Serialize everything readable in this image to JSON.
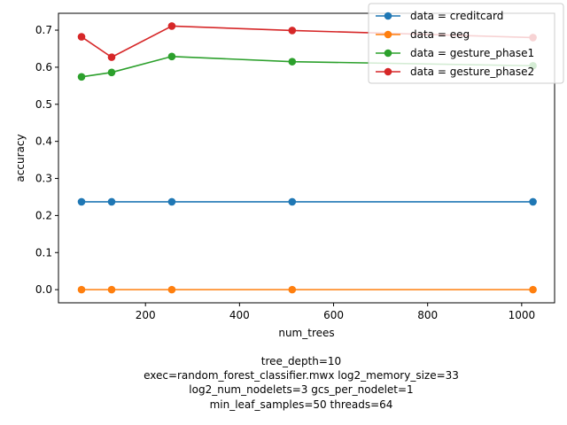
{
  "chart_data": {
    "type": "line",
    "xlabel": "num_trees",
    "ylabel": "accuracy",
    "xlim": [
      15,
      1070
    ],
    "ylim": [
      -0.0355,
      0.7455
    ],
    "xticks": [
      200,
      400,
      600,
      800,
      1000
    ],
    "yticks": [
      0.0,
      0.1,
      0.2,
      0.3,
      0.4,
      0.5,
      0.6,
      0.7
    ],
    "x": [
      64,
      128,
      256,
      512,
      1024
    ],
    "series": [
      {
        "name": "data = creditcard",
        "color": "#1f77b4",
        "values": [
          0.237,
          0.237,
          0.237,
          0.237,
          0.237
        ]
      },
      {
        "name": "data = eeg",
        "color": "#ff7f0e",
        "values": [
          0.0,
          0.0,
          0.0,
          0.0,
          0.0
        ]
      },
      {
        "name": "data = gesture_phase1",
        "color": "#2ca02c",
        "values": [
          0.574,
          0.586,
          0.629,
          0.615,
          0.604
        ]
      },
      {
        "name": "data = gesture_phase2",
        "color": "#d62728",
        "values": [
          0.682,
          0.627,
          0.711,
          0.699,
          0.68
        ]
      }
    ],
    "legend_position": "top-right",
    "grid": false,
    "caption": [
      "tree_depth=10",
      "exec=random_forest_classifier.mwx   log2_memory_size=33",
      "log2_num_nodelets=3   gcs_per_nodelet=1",
      "min_leaf_samples=50   threads=64"
    ]
  }
}
